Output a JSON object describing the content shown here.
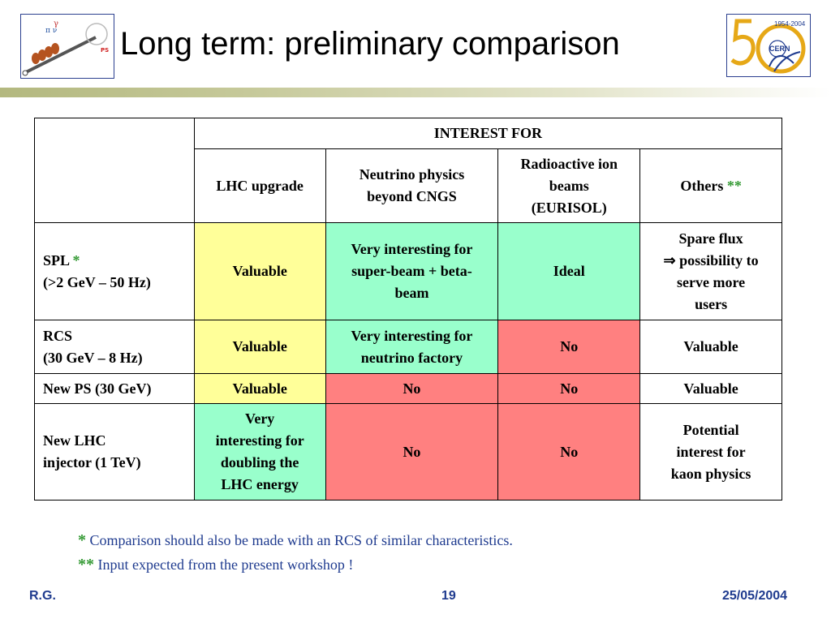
{
  "slide": {
    "title": "Long term: preliminary comparison",
    "left_logo": "ps-logo",
    "right_logo": {
      "icon": "cern-50-logo",
      "years": "1954-2004",
      "name": "CERN"
    }
  },
  "table": {
    "group_header": "INTEREST FOR",
    "columns": [
      {
        "line1": "LHC upgrade",
        "line2": "",
        "line3": ""
      },
      {
        "line1": "Neutrino physics",
        "line2": "beyond CNGS",
        "line3": ""
      },
      {
        "line1": "Radioactive ion",
        "line2": "beams",
        "line3": "(EURISOL)"
      },
      {
        "line1": "Others",
        "star": "**"
      }
    ],
    "rows": [
      {
        "name": "SPL",
        "star": "*",
        "detail": "(>2 GeV – 50 Hz)",
        "cells": [
          {
            "lines": [
              "Valuable"
            ],
            "color": "#ffff99"
          },
          {
            "lines": [
              "Very interesting for",
              "super-beam + beta-",
              "beam"
            ],
            "color": "#99ffcc"
          },
          {
            "lines": [
              "Ideal"
            ],
            "color": "#99ffcc"
          },
          {
            "lines": [
              "Spare flux",
              "⇒ possibility to",
              "serve more",
              "users"
            ],
            "color": "#ffffff"
          }
        ]
      },
      {
        "name": "RCS",
        "star": "",
        "detail": "(30 GeV – 8 Hz)",
        "cells": [
          {
            "lines": [
              "Valuable"
            ],
            "color": "#ffff99"
          },
          {
            "lines": [
              "Very interesting for",
              "neutrino factory"
            ],
            "color": "#99ffcc"
          },
          {
            "lines": [
              "No"
            ],
            "color": "#ff8080"
          },
          {
            "lines": [
              "Valuable"
            ],
            "color": "#ffffff"
          }
        ]
      },
      {
        "name": "New PS (30 GeV)",
        "star": "",
        "detail": "",
        "cells": [
          {
            "lines": [
              "Valuable"
            ],
            "color": "#ffff99"
          },
          {
            "lines": [
              "No"
            ],
            "color": "#ff8080"
          },
          {
            "lines": [
              "No"
            ],
            "color": "#ff8080"
          },
          {
            "lines": [
              "Valuable"
            ],
            "color": "#ffffff"
          }
        ]
      },
      {
        "name": "New LHC",
        "star": "",
        "detail": "injector (1 TeV)",
        "cells": [
          {
            "lines": [
              "Very",
              "interesting for",
              "doubling the",
              "LHC energy"
            ],
            "color": "#99ffcc"
          },
          {
            "lines": [
              "No"
            ],
            "color": "#ff8080"
          },
          {
            "lines": [
              "No"
            ],
            "color": "#ff8080"
          },
          {
            "lines": [
              "Potential",
              "interest for",
              "kaon physics"
            ],
            "color": "#ffffff"
          }
        ]
      }
    ]
  },
  "notes": [
    {
      "star": "*",
      "text": "Comparison should also be made with an RCS of similar characteristics."
    },
    {
      "star": "**",
      "text": "Input expected from the present workshop !"
    }
  ],
  "footer": {
    "author": "R.G.",
    "page": "19",
    "date": "25/05/2004"
  }
}
